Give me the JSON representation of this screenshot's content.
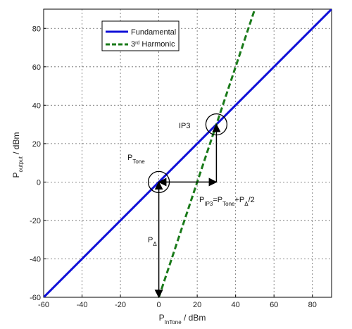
{
  "chart_data": {
    "type": "line",
    "title": "",
    "xlabel": {
      "main": "P",
      "sub": "InTone",
      "rest": " / dBm"
    },
    "ylabel": {
      "main": "P",
      "sub": "output",
      "rest": " / dBm"
    },
    "xlim": [
      -60,
      90
    ],
    "ylim": [
      -60,
      90
    ],
    "xticks": [
      -60,
      -40,
      -20,
      0,
      20,
      40,
      60,
      80
    ],
    "yticks": [
      -60,
      -40,
      -20,
      0,
      20,
      40,
      60,
      80
    ],
    "grid": true,
    "legend_position": "top-left",
    "series": [
      {
        "name_main": "Fundamental",
        "name_sup": "",
        "name_rest": "",
        "style": "solid",
        "color": "#1010d8",
        "x": [
          -60,
          90
        ],
        "y": [
          -60,
          90
        ]
      },
      {
        "name_main": "3",
        "name_sup": "rd",
        "name_rest": " Harmonic",
        "style": "dashed",
        "color": "#1a7a1a",
        "x": [
          0,
          50
        ],
        "y": [
          -60,
          90
        ]
      }
    ],
    "circles": [
      {
        "x": 0,
        "y": 0
      },
      {
        "x": 30,
        "y": 30
      }
    ],
    "arrows": [
      {
        "from": [
          0,
          -60
        ],
        "to": [
          0,
          0
        ],
        "head": "both"
      },
      {
        "from": [
          20,
          0
        ],
        "to": [
          0,
          0
        ],
        "head": "end"
      },
      {
        "from": [
          20,
          0
        ],
        "to": [
          30,
          0
        ],
        "head": "end"
      },
      {
        "from": [
          30,
          0
        ],
        "to": [
          30,
          30
        ],
        "head": "end"
      }
    ],
    "annotations": {
      "ptone": {
        "main": "P",
        "sub": "Tone"
      },
      "ip3": {
        "text": "IP3"
      },
      "pdelta": {
        "main": "P",
        "sub": "Δ"
      },
      "formula": {
        "p1": "P",
        "s1": "IP3",
        "p2": "=P",
        "s2": "Tone",
        "p3": "+P",
        "s3": "Δ",
        "p4": "/2"
      }
    }
  }
}
